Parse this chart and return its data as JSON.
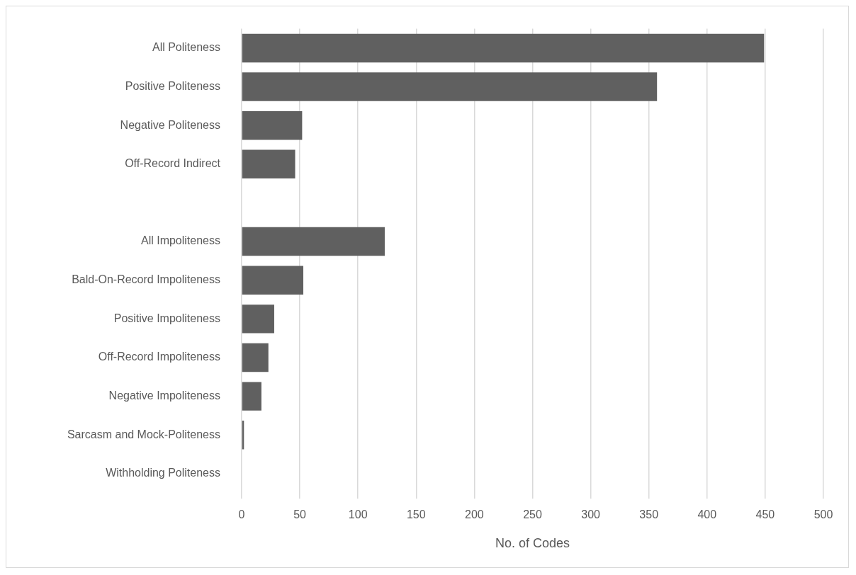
{
  "chart_data": {
    "type": "bar",
    "orientation": "horizontal",
    "xlabel": "No. of Codes",
    "categories": [
      "All Politeness",
      "Positive Politeness",
      "Negative Politeness",
      "Off-Record Indirect",
      null,
      "All Impoliteness",
      "Bald-On-Record Impoliteness",
      "Positive Impoliteness",
      "Off-Record Impoliteness",
      "Negative Impoliteness",
      "Sarcasm and Mock-Politeness",
      "Withholding Politeness"
    ],
    "values": [
      449,
      357,
      52,
      46,
      null,
      123,
      53,
      28,
      23,
      17,
      2,
      0
    ],
    "color": "#606060",
    "xlim": [
      0,
      500
    ],
    "xticks": [
      0,
      50,
      100,
      150,
      200,
      250,
      300,
      350,
      400,
      450,
      500
    ],
    "grid": "x",
    "legend": false
  }
}
